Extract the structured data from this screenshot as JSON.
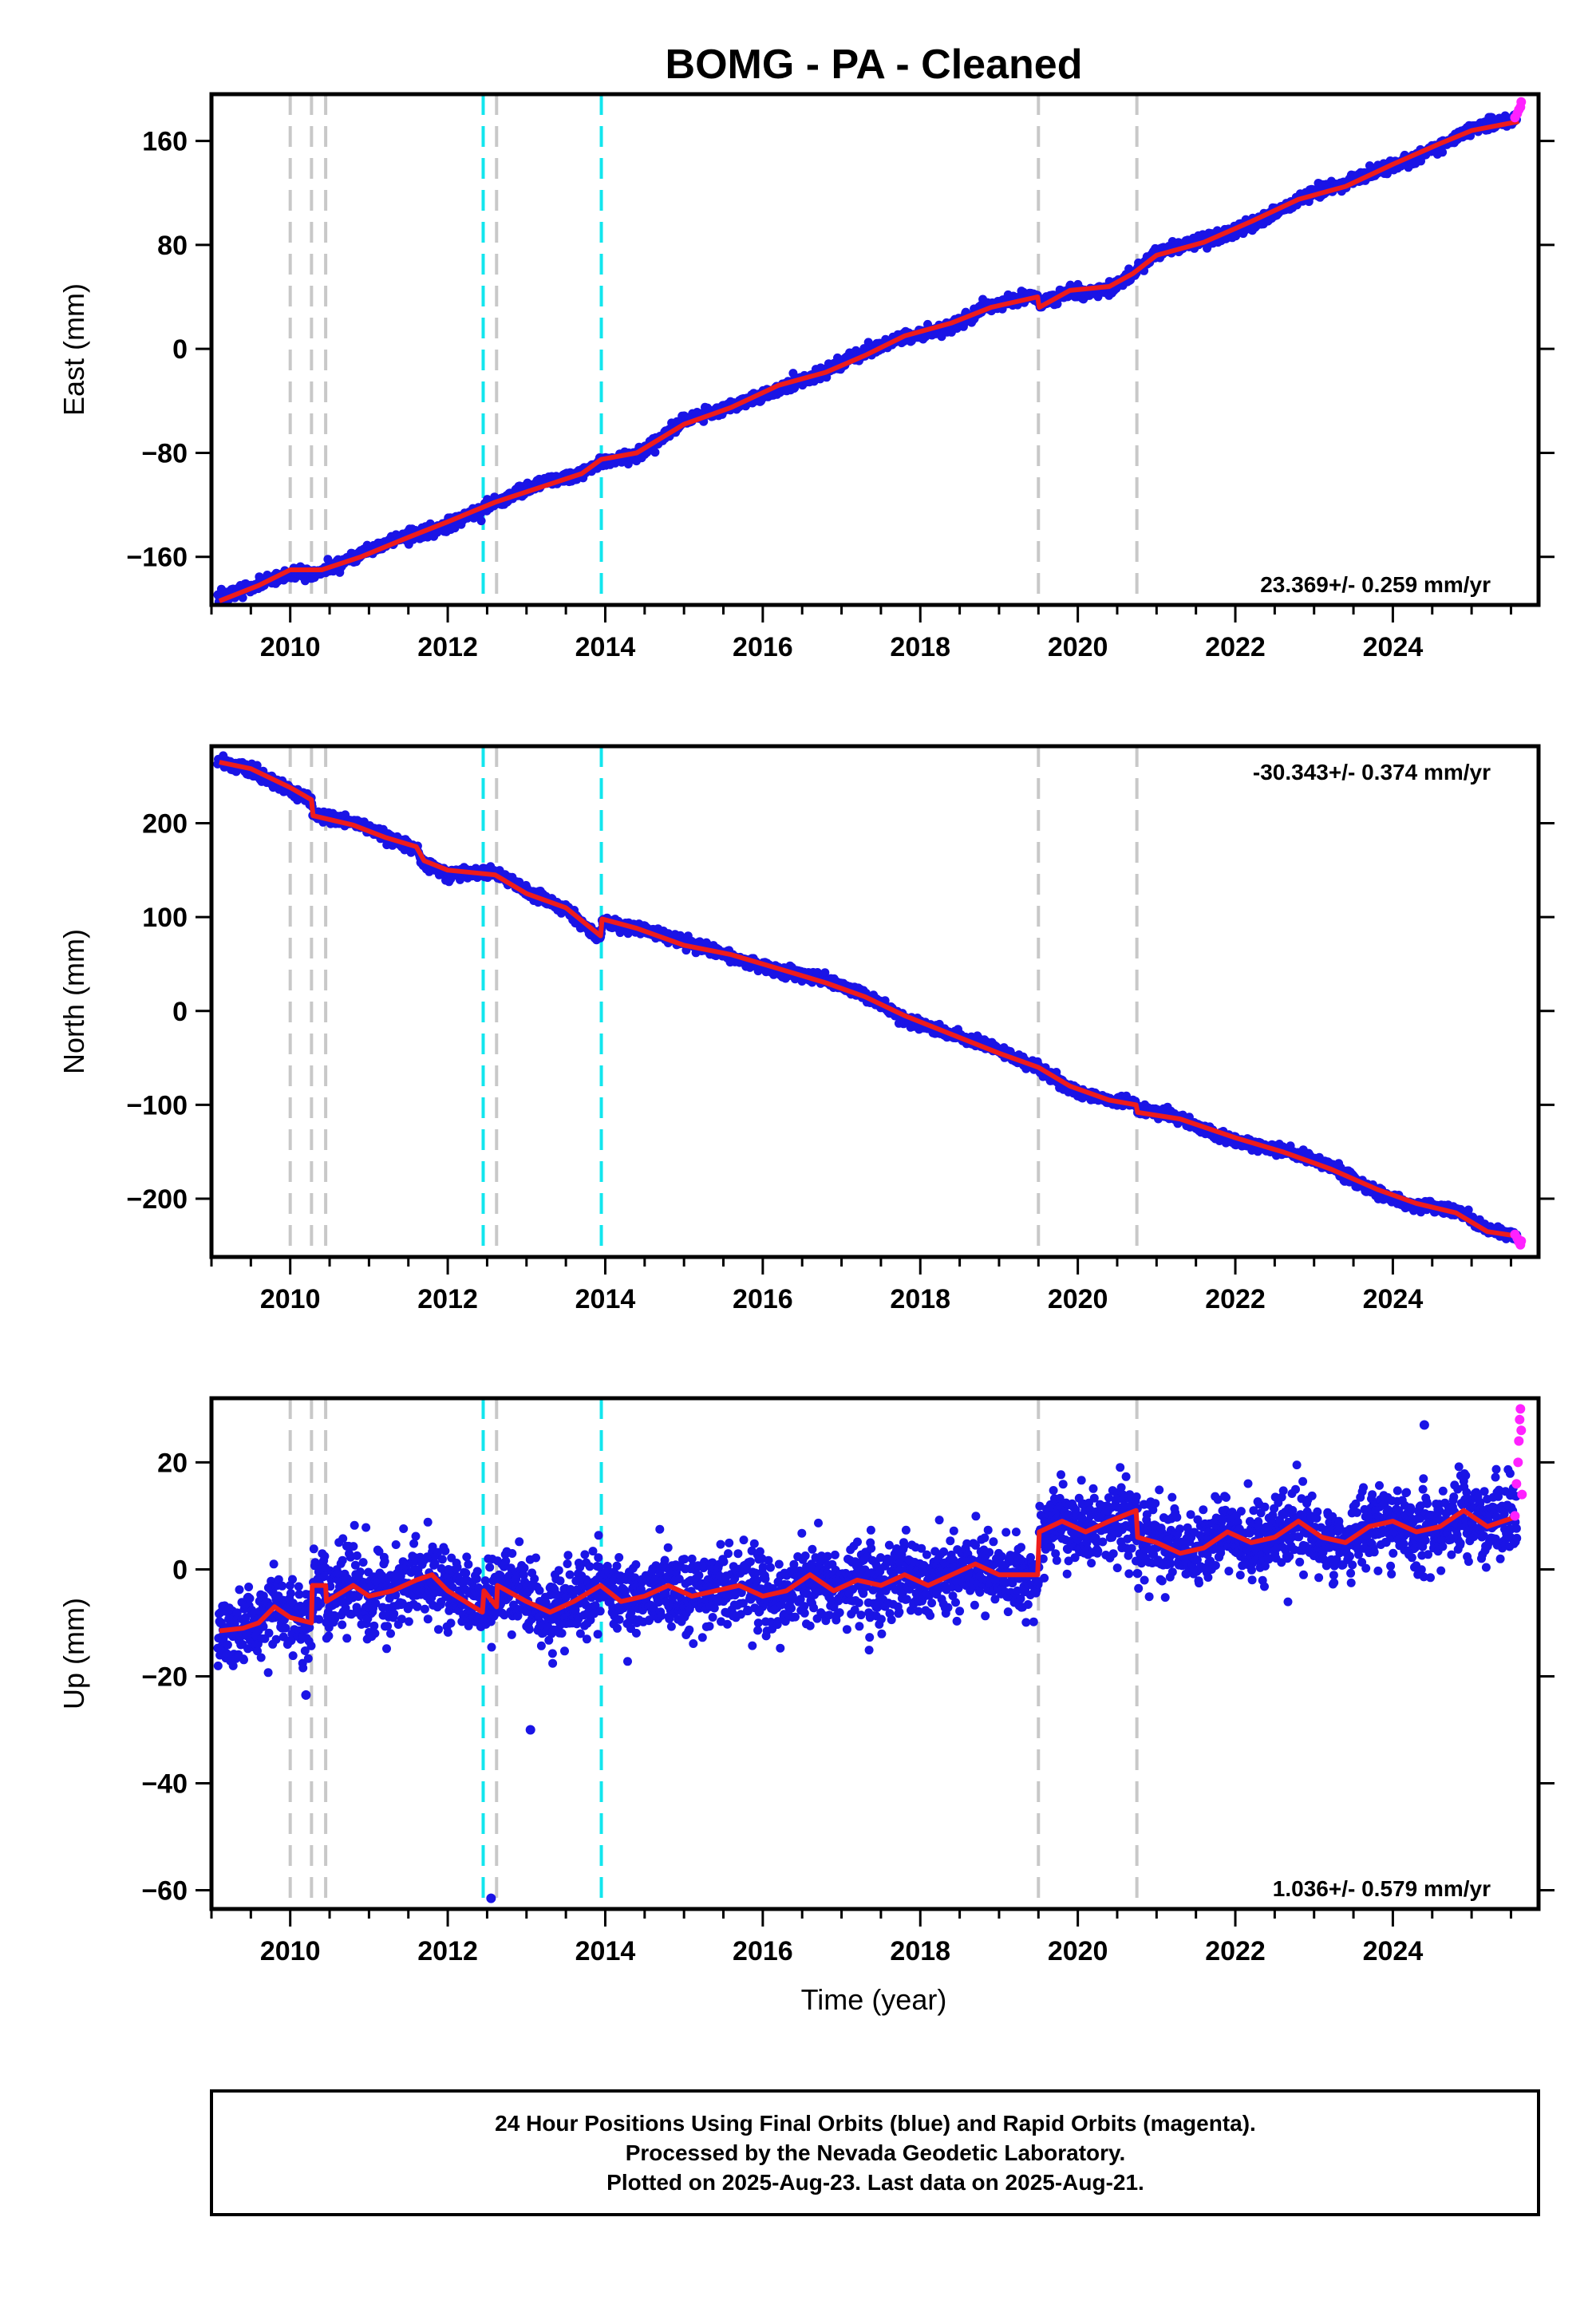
{
  "chart_data": {
    "type": "scatter",
    "title": "BOMG  - PA - Cleaned",
    "xlabel": "Time (year)",
    "xlim": [
      2009.0,
      2025.85
    ],
    "xticks": [
      2010,
      2012,
      2014,
      2016,
      2018,
      2020,
      2022,
      2024
    ],
    "event_lines": {
      "gray": [
        2010.0,
        2010.27,
        2010.45,
        2012.62,
        2019.5,
        2020.75
      ],
      "cyan": [
        2012.45,
        2013.95
      ]
    },
    "panels": [
      {
        "name": "east",
        "ylabel": "East (mm)",
        "ylim": [
          -197,
          196
        ],
        "yticks": [
          -160,
          -80,
          0,
          80,
          160
        ],
        "rate_text": "23.369+/- 0.259 mm/yr",
        "rate_position": "bottom-right",
        "model_line": [
          [
            2009.1,
            -194
          ],
          [
            2009.6,
            -182
          ],
          [
            2010.0,
            -170
          ],
          [
            2010.4,
            -170
          ],
          [
            2010.9,
            -160
          ],
          [
            2011.5,
            -145
          ],
          [
            2012.0,
            -133
          ],
          [
            2012.6,
            -118
          ],
          [
            2013.2,
            -106
          ],
          [
            2013.7,
            -96
          ],
          [
            2013.95,
            -85
          ],
          [
            2014.4,
            -80
          ],
          [
            2015.0,
            -58
          ],
          [
            2015.6,
            -45
          ],
          [
            2016.2,
            -28
          ],
          [
            2016.8,
            -18
          ],
          [
            2017.3,
            -5
          ],
          [
            2017.8,
            10
          ],
          [
            2018.4,
            20
          ],
          [
            2018.9,
            32
          ],
          [
            2019.49,
            40
          ],
          [
            2019.51,
            32
          ],
          [
            2019.9,
            45
          ],
          [
            2020.4,
            48
          ],
          [
            2020.7,
            58
          ],
          [
            2021.0,
            72
          ],
          [
            2021.6,
            82
          ],
          [
            2022.2,
            98
          ],
          [
            2022.8,
            115
          ],
          [
            2023.4,
            125
          ],
          [
            2024.0,
            142
          ],
          [
            2024.6,
            158
          ],
          [
            2025.0,
            168
          ],
          [
            2025.6,
            175
          ]
        ],
        "rapid_points": [
          [
            2025.55,
            178
          ],
          [
            2025.58,
            181
          ],
          [
            2025.6,
            184
          ],
          [
            2025.62,
            186
          ],
          [
            2025.63,
            190
          ]
        ]
      },
      {
        "name": "north",
        "ylabel": "North (mm)",
        "ylim": [
          -262,
          282
        ],
        "yticks": [
          -200,
          -100,
          0,
          100,
          200
        ],
        "rate_text": "-30.343+/- 0.374 mm/yr",
        "rate_position": "top-right",
        "model_line": [
          [
            2009.1,
            265
          ],
          [
            2009.5,
            258
          ],
          [
            2010.0,
            238
          ],
          [
            2010.27,
            225
          ],
          [
            2010.29,
            208
          ],
          [
            2010.8,
            198
          ],
          [
            2011.2,
            185
          ],
          [
            2011.6,
            175
          ],
          [
            2011.7,
            160
          ],
          [
            2012.0,
            150
          ],
          [
            2012.6,
            145
          ],
          [
            2013.0,
            125
          ],
          [
            2013.5,
            110
          ],
          [
            2013.94,
            80
          ],
          [
            2013.96,
            98
          ],
          [
            2014.4,
            88
          ],
          [
            2015.0,
            70
          ],
          [
            2015.6,
            60
          ],
          [
            2016.2,
            45
          ],
          [
            2016.8,
            30
          ],
          [
            2017.3,
            15
          ],
          [
            2017.8,
            -5
          ],
          [
            2018.4,
            -25
          ],
          [
            2019.0,
            -45
          ],
          [
            2019.5,
            -60
          ],
          [
            2019.9,
            -80
          ],
          [
            2020.4,
            -95
          ],
          [
            2020.74,
            -100
          ],
          [
            2020.76,
            -108
          ],
          [
            2021.3,
            -115
          ],
          [
            2022.0,
            -135
          ],
          [
            2022.6,
            -150
          ],
          [
            2023.2,
            -168
          ],
          [
            2023.8,
            -190
          ],
          [
            2024.3,
            -205
          ],
          [
            2024.8,
            -215
          ],
          [
            2025.2,
            -235
          ],
          [
            2025.6,
            -240
          ]
        ],
        "rapid_points": [
          [
            2025.55,
            -238
          ],
          [
            2025.58,
            -242
          ],
          [
            2025.6,
            -246
          ],
          [
            2025.62,
            -249
          ],
          [
            2025.63,
            -245
          ]
        ]
      },
      {
        "name": "up",
        "ylabel": "Up (mm)",
        "ylim": [
          -63.5,
          32
        ],
        "yticks": [
          -60,
          -40,
          -20,
          0,
          20
        ],
        "rate_text": "1.036+/- 0.579 mm/yr",
        "rate_position": "bottom-right",
        "model_line": [
          [
            2009.1,
            -11.5
          ],
          [
            2009.4,
            -11
          ],
          [
            2009.6,
            -10
          ],
          [
            2009.8,
            -7
          ],
          [
            2010.0,
            -9
          ],
          [
            2010.27,
            -10
          ],
          [
            2010.28,
            -3
          ],
          [
            2010.45,
            -3
          ],
          [
            2010.46,
            -6
          ],
          [
            2010.8,
            -3
          ],
          [
            2011.0,
            -5
          ],
          [
            2011.3,
            -4
          ],
          [
            2011.6,
            -2
          ],
          [
            2011.8,
            -1
          ],
          [
            2012.0,
            -4
          ],
          [
            2012.44,
            -8
          ],
          [
            2012.46,
            -4
          ],
          [
            2012.62,
            -7
          ],
          [
            2012.63,
            -3
          ],
          [
            2013.0,
            -6
          ],
          [
            2013.3,
            -8
          ],
          [
            2013.6,
            -6
          ],
          [
            2013.94,
            -3
          ],
          [
            2014.2,
            -6
          ],
          [
            2014.5,
            -5
          ],
          [
            2014.8,
            -3
          ],
          [
            2015.1,
            -5
          ],
          [
            2015.4,
            -4
          ],
          [
            2015.7,
            -3
          ],
          [
            2016.0,
            -5
          ],
          [
            2016.3,
            -4
          ],
          [
            2016.6,
            -1
          ],
          [
            2016.9,
            -4
          ],
          [
            2017.2,
            -2
          ],
          [
            2017.5,
            -3
          ],
          [
            2017.8,
            -1
          ],
          [
            2018.1,
            -3
          ],
          [
            2018.4,
            -1
          ],
          [
            2018.7,
            1
          ],
          [
            2019.0,
            -1
          ],
          [
            2019.49,
            -1
          ],
          [
            2019.51,
            7
          ],
          [
            2019.8,
            9
          ],
          [
            2020.1,
            7
          ],
          [
            2020.4,
            9
          ],
          [
            2020.74,
            11
          ],
          [
            2020.76,
            6
          ],
          [
            2021.0,
            5
          ],
          [
            2021.3,
            3
          ],
          [
            2021.6,
            4
          ],
          [
            2021.9,
            7
          ],
          [
            2022.2,
            5
          ],
          [
            2022.5,
            6
          ],
          [
            2022.8,
            9
          ],
          [
            2023.1,
            6
          ],
          [
            2023.4,
            5
          ],
          [
            2023.7,
            8
          ],
          [
            2024.0,
            9
          ],
          [
            2024.3,
            7
          ],
          [
            2024.6,
            8
          ],
          [
            2024.9,
            11
          ],
          [
            2025.2,
            8
          ],
          [
            2025.6,
            10
          ]
        ],
        "outliers": [
          [
            2012.55,
            -61.5
          ],
          [
            2013.05,
            -30
          ],
          [
            2010.2,
            -23.5
          ],
          [
            2024.4,
            27
          ]
        ],
        "rapid_points": [
          [
            2025.55,
            10
          ],
          [
            2025.57,
            16
          ],
          [
            2025.59,
            20
          ],
          [
            2025.6,
            24
          ],
          [
            2025.61,
            28
          ],
          [
            2025.62,
            30
          ],
          [
            2025.63,
            26
          ],
          [
            2025.64,
            14
          ]
        ]
      }
    ],
    "colors": {
      "final_orbits": "#1a14e6",
      "rapid_orbits": "#ff21ff",
      "model": "#ee1c1c",
      "gray_events": "#c8c8c8",
      "cyan_events": "#12e6ee"
    }
  },
  "footer": {
    "line1": "24 Hour Positions Using Final Orbits (blue) and Rapid Orbits (magenta).",
    "line2": "Processed by the Nevada Geodetic Laboratory.",
    "line3": "Plotted on 2025-Aug-23. Last data on 2025-Aug-21."
  }
}
